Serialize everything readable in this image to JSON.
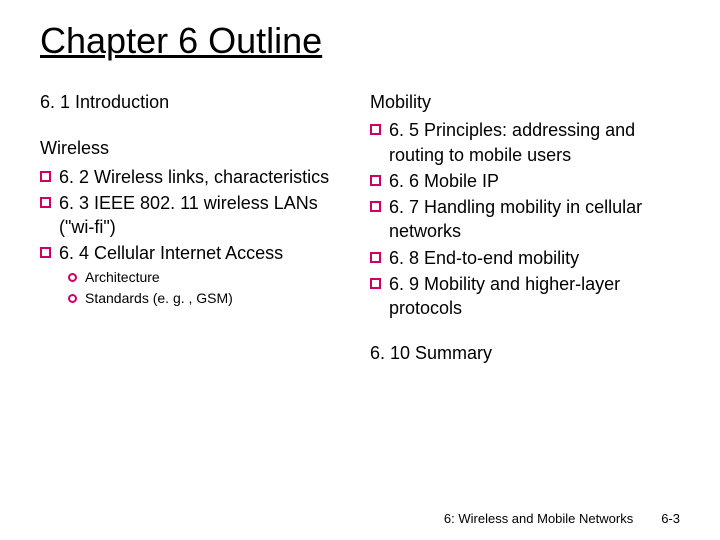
{
  "title": "Chapter 6 Outline",
  "left": {
    "intro": "6. 1 Introduction",
    "wireless_head": "Wireless",
    "items": [
      "6. 2 Wireless links, characteristics",
      "6. 3 IEEE 802. 11 wireless LANs (\"wi-fi\")",
      "6. 4 Cellular Internet Access"
    ],
    "subitems": [
      "Architecture",
      "Standards (e. g. , GSM)"
    ]
  },
  "right": {
    "mobility_head": "Mobility",
    "items": [
      "6. 5 Principles: addressing and routing to mobile users",
      "6. 6 Mobile IP",
      "6. 7 Handling mobility in cellular networks",
      "6. 8 End-to-end mobility",
      "6. 9 Mobility and higher-layer protocols"
    ],
    "summary": "6. 10 Summary"
  },
  "footer": {
    "text": "6: Wireless and Mobile Networks",
    "page": "6-3"
  },
  "colors": {
    "bullet_border": "#cc0066",
    "text": "#000000",
    "background": "#ffffff"
  },
  "fonts": {
    "family": "Comic Sans MS",
    "title_size": 36,
    "body_size": 18,
    "sub_size": 14,
    "footer_size": 13
  }
}
